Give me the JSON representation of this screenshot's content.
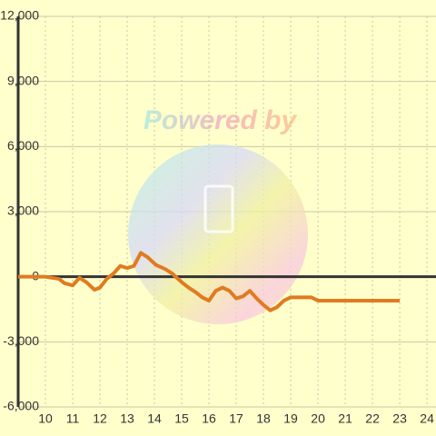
{
  "chart_data": {
    "type": "line",
    "watermark": "Powered by",
    "x": [
      9,
      10,
      10.5,
      10.7,
      11,
      11.25,
      11.5,
      11.8,
      12,
      12.25,
      12.5,
      12.75,
      13,
      13.25,
      13.5,
      13.75,
      14.05,
      14.4,
      14.65,
      15,
      15.25,
      15.5,
      15.75,
      16,
      16.25,
      16.5,
      16.75,
      17,
      17.25,
      17.5,
      17.75,
      18,
      18.25,
      18.5,
      18.75,
      19,
      19.75,
      20,
      23
    ],
    "series": [
      {
        "color": "#e07b20",
        "values": [
          0,
          0,
          -100,
          -300,
          -400,
          -50,
          -250,
          -600,
          -500,
          -100,
          150,
          500,
          400,
          500,
          1100,
          900,
          550,
          350,
          150,
          -250,
          -500,
          -700,
          -950,
          -1100,
          -650,
          -500,
          -650,
          -1000,
          -900,
          -650,
          -1000,
          -1300,
          -1550,
          -1400,
          -1100,
          -950,
          -950,
          -1100,
          -1100
        ]
      }
    ],
    "xlim": [
      9,
      24.33
    ],
    "ylim": [
      -6000,
      12000
    ],
    "xticks": [
      10,
      11,
      12,
      13,
      14,
      15,
      16,
      17,
      18,
      19,
      20,
      21,
      22,
      23,
      24
    ],
    "yticks": [
      {
        "value": -6000,
        "label": "-6,000"
      },
      {
        "value": -3000,
        "label": "-3,000"
      },
      0,
      {
        "value": 3000,
        "label": "3,000"
      },
      {
        "value": 6000,
        "label": "6,000"
      },
      {
        "value": 9000,
        "label": "9,000"
      },
      {
        "value": 12000,
        "label": "12,000"
      }
    ],
    "grid": true
  }
}
